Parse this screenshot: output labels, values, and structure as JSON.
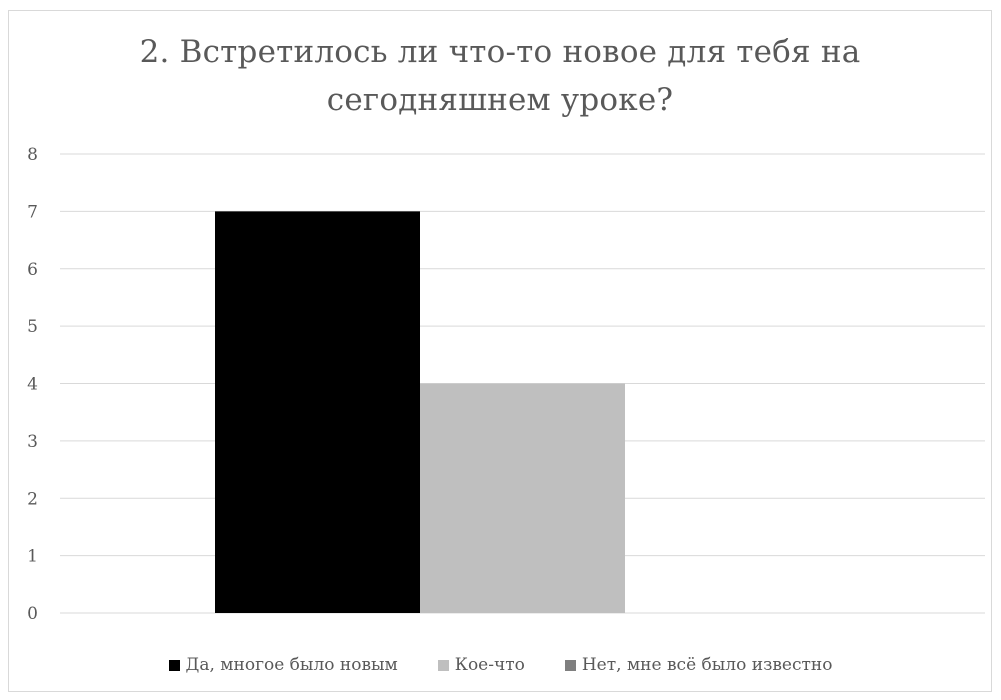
{
  "chart_data": {
    "type": "bar",
    "title": "2. Встретилось ли что-то новое для тебя на сегодняшнем уроке?",
    "categories": [
      ""
    ],
    "series": [
      {
        "name": "Да, многое было новым",
        "values": [
          7
        ],
        "color": "#000000"
      },
      {
        "name": "Кое-что",
        "values": [
          4
        ],
        "color": "#bfbfbf"
      },
      {
        "name": "Нет, мне всё было известно",
        "values": [
          0
        ],
        "color": "#7f7f7f"
      }
    ],
    "xlabel": "",
    "ylabel": "",
    "ylim": [
      0,
      8
    ],
    "yticks": [
      "0",
      "1",
      "2",
      "3",
      "4",
      "5",
      "6",
      "7",
      "8"
    ],
    "grid": true,
    "legend_position": "bottom",
    "gridline_color": "#d9d9d9",
    "text_color": "#595959"
  }
}
